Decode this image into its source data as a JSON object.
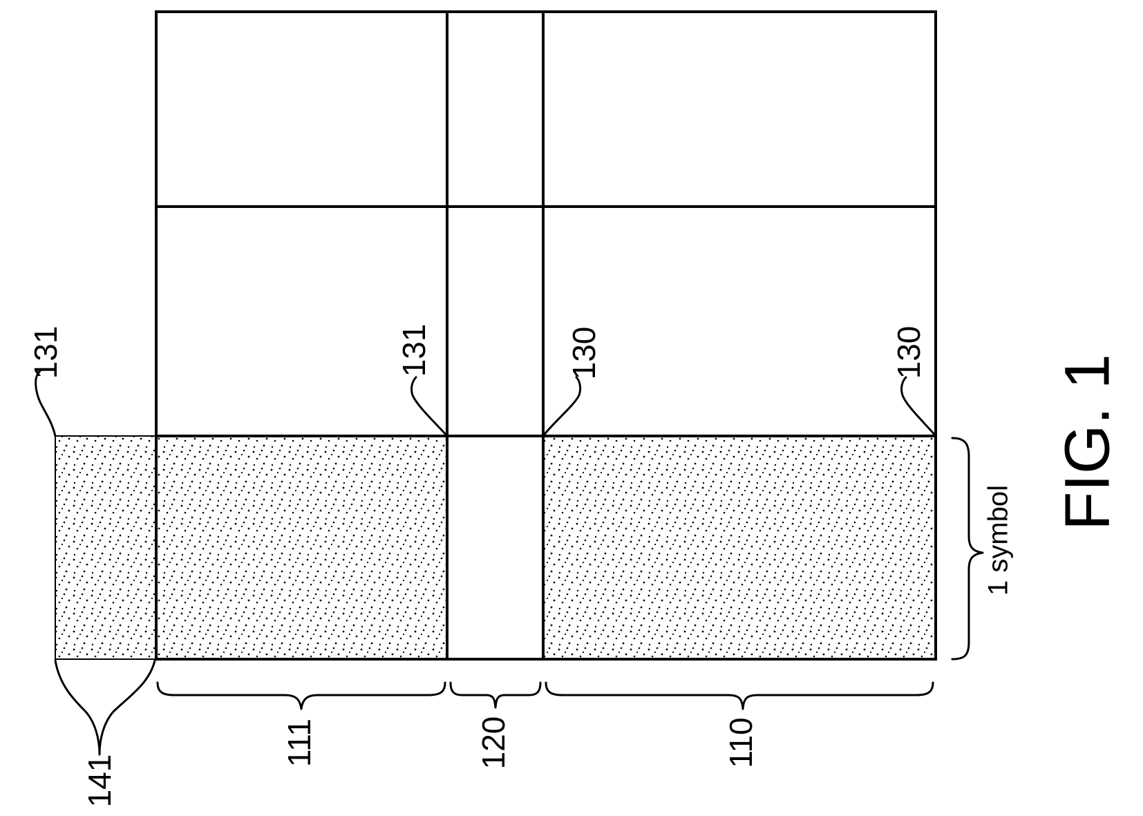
{
  "figure": {
    "title": "FIG. 1",
    "colors": {
      "line": "#000000",
      "background": "#ffffff",
      "dot_fill": "#000000"
    },
    "regions": {
      "region_111": {
        "label": "111",
        "shaded": true
      },
      "region_120": {
        "label": "120",
        "shaded": false
      },
      "region_110": {
        "label": "110",
        "shaded": true
      },
      "region_141": {
        "label": "141",
        "shaded": true
      }
    },
    "callouts": {
      "c131_left": "131",
      "c131_mid": "131",
      "c130_mid": "130",
      "c130_right": "130"
    },
    "span_label": "1 symbol"
  }
}
